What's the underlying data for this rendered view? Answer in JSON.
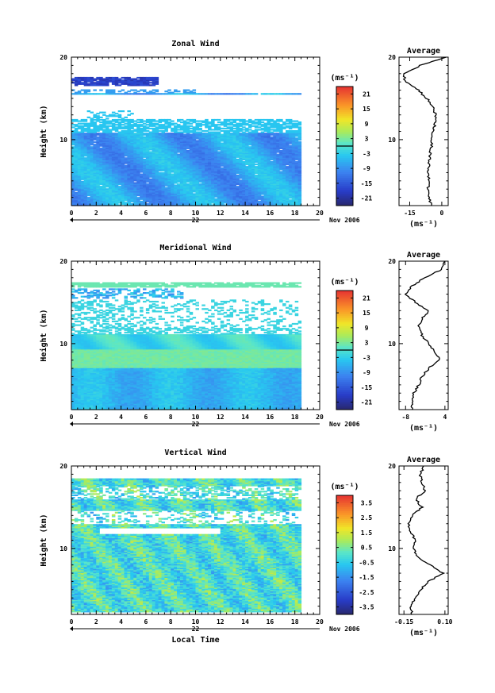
{
  "chart_data": [
    {
      "type": "heatmap",
      "title": "Zonal Wind",
      "ylabel": "Height (km)",
      "xticks": [
        "0",
        "2",
        "4",
        "6",
        "8",
        "10",
        "12",
        "14",
        "16",
        "18",
        "20"
      ],
      "yticks": [
        "10",
        "20"
      ],
      "ylim": [
        2,
        20
      ],
      "xlim": [
        0,
        20
      ],
      "day_label": "22",
      "date_label": "Nov 2006",
      "data_end_hour": 18.5,
      "colorbar": {
        "unit": "(ms⁻¹)",
        "ticks": [
          "21",
          "15",
          "9",
          "3",
          "-3",
          "-9",
          "-15",
          "-21"
        ],
        "range": [
          -24,
          24
        ],
        "marker": 0
      },
      "profile": {
        "title": "Average",
        "xunit": "(ms⁻¹)",
        "xticks": [
          "-15",
          "0"
        ],
        "xtick_values": [
          -15,
          0
        ],
        "xlim": [
          -20,
          3
        ],
        "yticks": [
          "10",
          "20"
        ],
        "points": [
          [
            -5,
            2
          ],
          [
            -6,
            3
          ],
          [
            -6.5,
            4
          ],
          [
            -6,
            5
          ],
          [
            -6.5,
            6
          ],
          [
            -6,
            7
          ],
          [
            -5.5,
            8
          ],
          [
            -5,
            9
          ],
          [
            -4.5,
            10
          ],
          [
            -4,
            11
          ],
          [
            -3,
            12
          ],
          [
            -3,
            13
          ],
          [
            -4,
            14
          ],
          [
            -7,
            15
          ],
          [
            -11,
            16
          ],
          [
            -17,
            17
          ],
          [
            -18,
            18
          ],
          [
            -10,
            19
          ],
          [
            2,
            20
          ]
        ]
      }
    },
    {
      "type": "heatmap",
      "title": "Meridional Wind",
      "ylabel": "Height (km)",
      "xticks": [
        "0",
        "2",
        "4",
        "6",
        "8",
        "10",
        "12",
        "14",
        "16",
        "18",
        "20"
      ],
      "yticks": [
        "10",
        "20"
      ],
      "ylim": [
        2,
        20
      ],
      "xlim": [
        0,
        20
      ],
      "day_label": "22",
      "date_label": "Nov 2006",
      "data_end_hour": 18.5,
      "colorbar": {
        "unit": "(ms⁻¹)",
        "ticks": [
          "21",
          "15",
          "9",
          "3",
          "-3",
          "-9",
          "-15",
          "-21"
        ],
        "range": [
          -24,
          24
        ],
        "marker": 0
      },
      "profile": {
        "title": "Average",
        "xunit": "(ms⁻¹)",
        "xticks": [
          "-8",
          "4"
        ],
        "xtick_values": [
          -8,
          4
        ],
        "xlim": [
          -10,
          5
        ],
        "yticks": [
          "10",
          "20"
        ],
        "points": [
          [
            -6,
            2
          ],
          [
            -6,
            3
          ],
          [
            -5.5,
            4
          ],
          [
            -4,
            5
          ],
          [
            -3,
            6
          ],
          [
            -1,
            7
          ],
          [
            2.5,
            8
          ],
          [
            1,
            9
          ],
          [
            -1,
            10
          ],
          [
            -3,
            11
          ],
          [
            -4,
            12
          ],
          [
            -3,
            13
          ],
          [
            -1,
            14
          ],
          [
            -5,
            15
          ],
          [
            -8,
            16
          ],
          [
            -6,
            17
          ],
          [
            -2,
            18
          ],
          [
            3,
            19
          ],
          [
            4,
            20
          ]
        ]
      }
    },
    {
      "type": "heatmap",
      "title": "Vertical Wind",
      "ylabel": "Height (km)",
      "xlabel": "Local Time",
      "xticks": [
        "0",
        "2",
        "4",
        "6",
        "8",
        "10",
        "12",
        "14",
        "16",
        "18",
        "20"
      ],
      "yticks": [
        "10",
        "20"
      ],
      "ylim": [
        2,
        20
      ],
      "xlim": [
        0,
        20
      ],
      "day_label": "22",
      "date_label": "Nov 2006",
      "data_end_hour": 18.5,
      "colorbar": {
        "unit": "(ms⁻¹)",
        "ticks": [
          "3.5",
          "2.5",
          "1.5",
          "0.5",
          "-0.5",
          "-1.5",
          "-2.5",
          "-3.5"
        ],
        "range": [
          -4,
          4
        ],
        "marker": null
      },
      "profile": {
        "title": "Average",
        "xunit": "(ms⁻¹)",
        "xticks": [
          "-0.15",
          "0.10"
        ],
        "xtick_values": [
          -0.15,
          0.1
        ],
        "xlim": [
          -0.18,
          0.12
        ],
        "yticks": [
          "10",
          "20"
        ],
        "points": [
          [
            -0.1,
            2
          ],
          [
            -0.11,
            3
          ],
          [
            -0.08,
            4
          ],
          [
            -0.05,
            5
          ],
          [
            0.0,
            6
          ],
          [
            0.09,
            7
          ],
          [
            0.01,
            8
          ],
          [
            -0.07,
            9
          ],
          [
            -0.09,
            10
          ],
          [
            -0.08,
            11
          ],
          [
            -0.11,
            12
          ],
          [
            -0.12,
            13
          ],
          [
            -0.1,
            14
          ],
          [
            -0.04,
            15
          ],
          [
            -0.08,
            16
          ],
          [
            -0.02,
            17
          ],
          [
            -0.04,
            18
          ],
          [
            -0.05,
            19
          ],
          [
            -0.03,
            20
          ]
        ]
      }
    }
  ]
}
